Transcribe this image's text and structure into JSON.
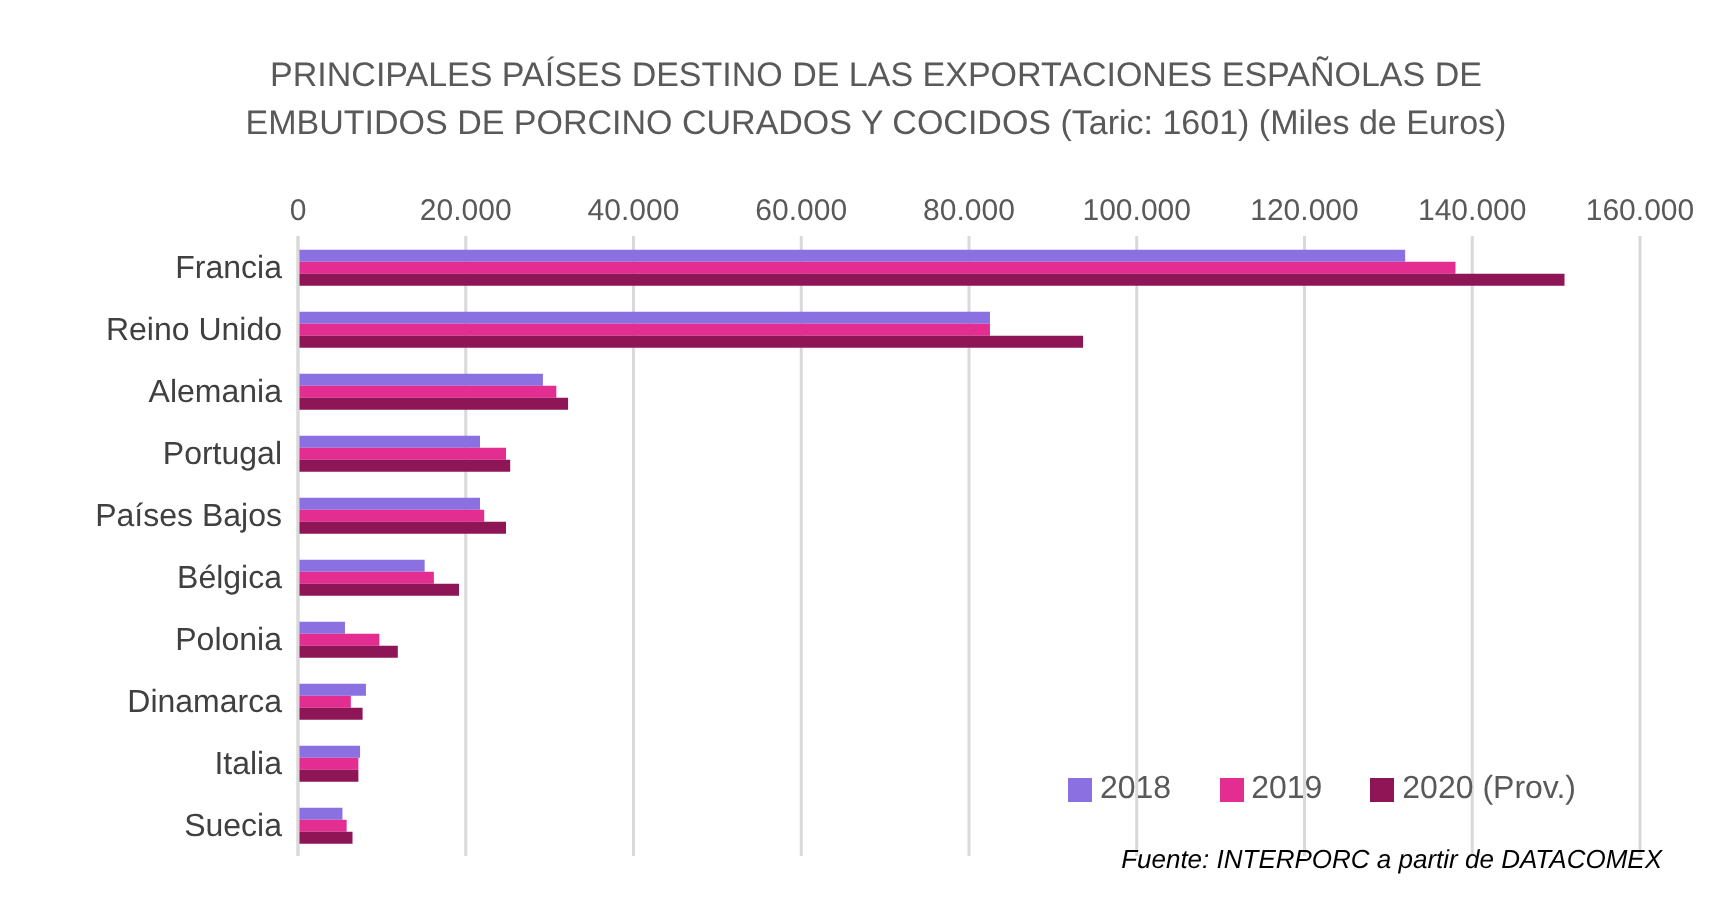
{
  "chart_data": {
    "type": "bar",
    "orientation": "horizontal",
    "title": "PRINCIPALES PAÍSES DESTINO DE LAS EXPORTACIONES ESPAÑOLAS DE\nEMBUTIDOS DE  PORCINO CURADOS Y COCIDOS (Taric: 1601) (Miles de Euros)",
    "categories": [
      "Francia",
      "Reino Unido",
      "Alemania",
      "Portugal",
      "Países Bajos",
      "Bélgica",
      "Polonia",
      "Dinamarca",
      "Italia",
      "Suecia"
    ],
    "series": [
      {
        "name": "2018",
        "color": "#8a70e0",
        "values": [
          132000,
          82500,
          29200,
          21700,
          21700,
          15100,
          5600,
          8100,
          7400,
          5300
        ]
      },
      {
        "name": "2019",
        "color": "#e32d91",
        "values": [
          138000,
          82500,
          30800,
          24800,
          22200,
          16200,
          9700,
          6300,
          7200,
          5800
        ]
      },
      {
        "name": "2020 (Prov.)",
        "color": "#8e1656",
        "values": [
          151000,
          93600,
          32200,
          25300,
          24800,
          19200,
          11900,
          7700,
          7200,
          6500
        ]
      }
    ],
    "xlim": [
      0,
      160000
    ],
    "xticks": [
      0,
      {
        "value": 20000,
        "label": "20.000"
      },
      {
        "value": 40000,
        "label": "40.000"
      },
      {
        "value": 60000,
        "label": "60.000"
      },
      {
        "value": 80000,
        "label": "80.000"
      },
      {
        "value": 100000,
        "label": "100.000"
      },
      {
        "value": 120000,
        "label": "120.000"
      },
      {
        "value": 140000,
        "label": "140.000"
      },
      {
        "value": 160000,
        "label": "160.000"
      }
    ],
    "grid": "x",
    "legend": "bottom right",
    "annotations": [
      "Fuente: INTERPORC  a partir de DATACOMEX"
    ]
  }
}
